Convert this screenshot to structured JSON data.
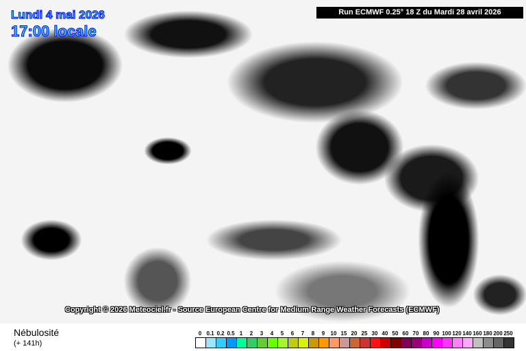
{
  "header": {
    "date": "Lundi 4 mai 2026",
    "time": "17:00 locale",
    "run": "Run ECMWF 0.25° 18 Z du Mardi 28 avril 2026"
  },
  "copyright": "Copyright © 2026 Meteociel.fr - Source European Centre for Medium-Range Weather Forecasts (ECMWF)",
  "footer": {
    "parameter": "Nébulosité",
    "lead": "(+ 141h)"
  },
  "legend": {
    "labels": [
      "0",
      "0.1",
      "0.2",
      "0.5",
      "1",
      "2",
      "3",
      "4",
      "5",
      "6",
      "7",
      "8",
      "9",
      "10",
      "15",
      "20",
      "25",
      "30",
      "40",
      "50",
      "60",
      "70",
      "80",
      "90",
      "100",
      "120",
      "140",
      "160",
      "180",
      "200",
      "250"
    ],
    "colors": [
      "#ffffff",
      "#99e6ff",
      "#33ccff",
      "#0099ff",
      "#00ff99",
      "#33cc66",
      "#66cc33",
      "#66ff00",
      "#a6f532",
      "#bfcc11",
      "#d9f011",
      "#cc9900",
      "#ff9900",
      "#ff9966",
      "#cc9999",
      "#cc6633",
      "#cc3333",
      "#ff1111",
      "#cc0000",
      "#800000",
      "#800055",
      "#990077",
      "#cc00cc",
      "#ff00ff",
      "#ff33ff",
      "#ff80ff",
      "#ffa6ff",
      "#c0c0c0",
      "#8c8c8c",
      "#646464",
      "#333333"
    ]
  },
  "map": {
    "cloud_color": "#ffffff",
    "clear_color": "#000000",
    "coastline_color": "#cccc00"
  }
}
